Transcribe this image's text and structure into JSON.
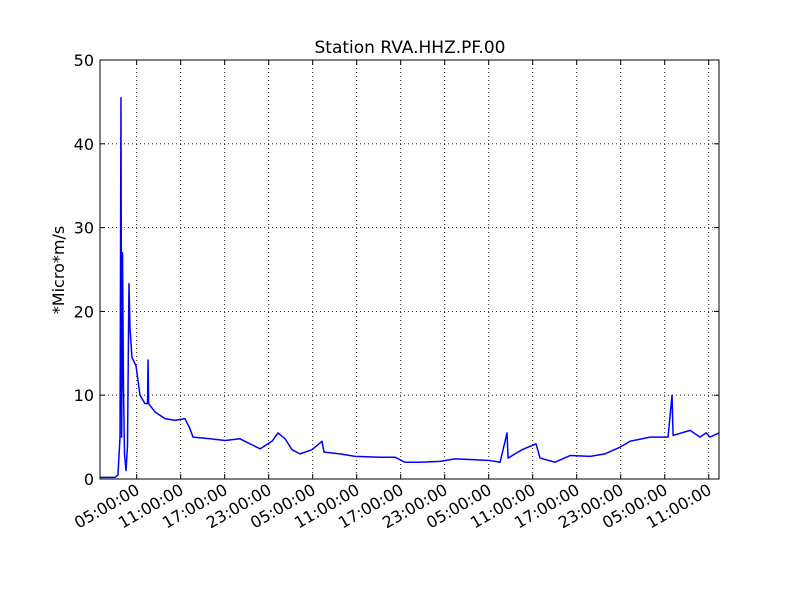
{
  "chart_data": {
    "type": "line",
    "title": "Station RVA.HHZ.PF.00",
    "y_label": "*Micro*m/s",
    "x": [
      0,
      2.05,
      2.45,
      2.73,
      2.86,
      2.95,
      3.07,
      3.2,
      3.34,
      3.55,
      3.75,
      3.95,
      4.09,
      4.36,
      4.91,
      5.45,
      6.14,
      6.48,
      6.55,
      6.63,
      7.5,
      8.86,
      10.23,
      11.59,
      12.27,
      12.68,
      15,
      17.05,
      19.09,
      20.45,
      21.82,
      23.45,
      24.27,
      25.23,
      26.18,
      27.27,
      28.91,
      30.27,
      30.55,
      32.73,
      34.77,
      38.18,
      40.23,
      41.59,
      43.64,
      46.36,
      48.41,
      51.14,
      53.18,
      54.55,
      55.5,
      55.64,
      56.59,
      57.55,
      59.45,
      60,
      62.05,
      64.09,
      66.82,
      68.86,
      70.91,
      72.27,
      75,
      77.45,
      78,
      78.14,
      80.45,
      81.82,
      82.64,
      83.18,
      84.4
    ],
    "series": [
      {
        "name": "RVA.HHZ.PF.00",
        "color": "#0000ff",
        "values": [
          0.2,
          0.2,
          0.5,
          5,
          45.5,
          5,
          27,
          11,
          3,
          1,
          4,
          23.3,
          18,
          14.5,
          13.5,
          10,
          9,
          9,
          14.2,
          9,
          8,
          7.2,
          7,
          7.2,
          6,
          5,
          4.8,
          4.6,
          4.8,
          4.2,
          3.6,
          4.5,
          5.5,
          4.8,
          3.5,
          3,
          3.5,
          4.5,
          3.2,
          3,
          2.7,
          2.6,
          2.6,
          2,
          2,
          2.1,
          2.4,
          2.3,
          2.2,
          2,
          5.5,
          2.5,
          3,
          3.5,
          4.2,
          2.5,
          2,
          2.8,
          2.7,
          3,
          3.8,
          4.5,
          5,
          5,
          10,
          5.2,
          5.8,
          5,
          5.5,
          5,
          5.5
        ]
      }
    ],
    "xlim": [
      0,
      84.4
    ],
    "xticks": [
      {
        "value": 5,
        "label": "05:00:00"
      },
      {
        "value": 11,
        "label": "11:00:00"
      },
      {
        "value": 17,
        "label": "17:00:00"
      },
      {
        "value": 23,
        "label": "23:00:00"
      },
      {
        "value": 29,
        "label": "05:00:00"
      },
      {
        "value": 35,
        "label": "11:00:00"
      },
      {
        "value": 41,
        "label": "17:00:00"
      },
      {
        "value": 47,
        "label": "23:00:00"
      },
      {
        "value": 53,
        "label": "05:00:00"
      },
      {
        "value": 59,
        "label": "11:00:00"
      },
      {
        "value": 65,
        "label": "17:00:00"
      },
      {
        "value": 71,
        "label": "23:00:00"
      },
      {
        "value": 77,
        "label": "05:00:00"
      },
      {
        "value": 83,
        "label": "11:00:00"
      }
    ],
    "ylim": [
      0,
      50
    ],
    "yticks": [
      0,
      10,
      20,
      30,
      40,
      50
    ],
    "grid": true
  }
}
